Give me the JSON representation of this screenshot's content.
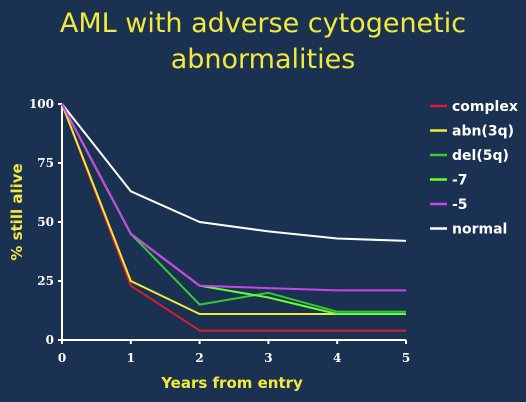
{
  "chart_data": {
    "type": "line",
    "title_lines": [
      "AML with adverse cytogenetic",
      "abnormalities"
    ],
    "xlabel": "Years from entry",
    "ylabel": "% still alive",
    "x": [
      0,
      1,
      2,
      3,
      4,
      5
    ],
    "xlim": [
      0,
      5
    ],
    "ylim": [
      0,
      100
    ],
    "x_ticks": [
      "0",
      "1",
      "2",
      "3",
      "4",
      "5"
    ],
    "y_ticks": [
      "0",
      "25",
      "50",
      "75",
      "100"
    ],
    "grid": false,
    "legend_position": "right",
    "series": [
      {
        "name": "complex",
        "color": "#d4202a",
        "values": [
          100,
          23,
          4,
          4,
          4,
          4
        ]
      },
      {
        "name": "abn(3q)",
        "color": "#f2ea3a",
        "values": [
          100,
          25,
          11,
          11,
          11,
          11
        ]
      },
      {
        "name": "del(5q)",
        "color": "#33cc33",
        "values": [
          100,
          45,
          15,
          20,
          12,
          12
        ]
      },
      {
        "name": "-7",
        "color": "#66ff33",
        "values": [
          100,
          45,
          23,
          18,
          11,
          11
        ]
      },
      {
        "name": "-5",
        "color": "#cc44ee",
        "values": [
          100,
          45,
          23,
          22,
          21,
          21
        ]
      },
      {
        "name": "normal",
        "color": "#ffffff",
        "values": [
          100,
          63,
          50,
          46,
          43,
          42
        ]
      }
    ]
  }
}
